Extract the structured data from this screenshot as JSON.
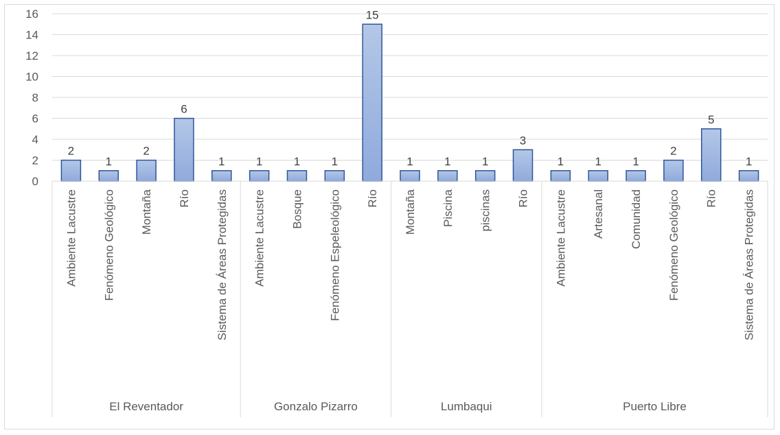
{
  "chart_data": {
    "type": "bar",
    "title": "",
    "xlabel": "",
    "ylabel": "",
    "ylim": [
      0,
      16
    ],
    "yticks": [
      0,
      2,
      4,
      6,
      8,
      10,
      12,
      14,
      16
    ],
    "grid": true,
    "legend": "none",
    "colors": {
      "bar_top": "#b4c7e7",
      "bar_bottom": "#8faadc",
      "bar_border": "#2f5597",
      "grid": "#d9d9d9",
      "text": "#595959"
    },
    "groups": [
      {
        "name": "El Reventador",
        "categories": [
          "Ambiente Lacustre",
          "Fenómeno Geológico",
          "Montaña",
          "Río",
          "Sistema de Áreas Protegidas"
        ],
        "values": [
          2,
          1,
          2,
          6,
          1
        ]
      },
      {
        "name": "Gonzalo Pizarro",
        "categories": [
          "Ambiente Lacustre",
          "Bosque",
          "Fenómeno Espeleológico",
          "Río"
        ],
        "values": [
          1,
          1,
          1,
          15
        ]
      },
      {
        "name": "Lumbaqui",
        "categories": [
          "Montaña",
          "Piscina",
          "piscinas",
          "Río"
        ],
        "values": [
          1,
          1,
          1,
          3
        ]
      },
      {
        "name": "Puerto Libre",
        "categories": [
          "Ambiente Lacustre",
          "Artesanal",
          "Comunidad",
          "Fenómeno Geológico",
          "Río",
          "Sistema de Áreas Protegidas"
        ],
        "values": [
          1,
          1,
          1,
          2,
          5,
          1
        ]
      }
    ]
  }
}
